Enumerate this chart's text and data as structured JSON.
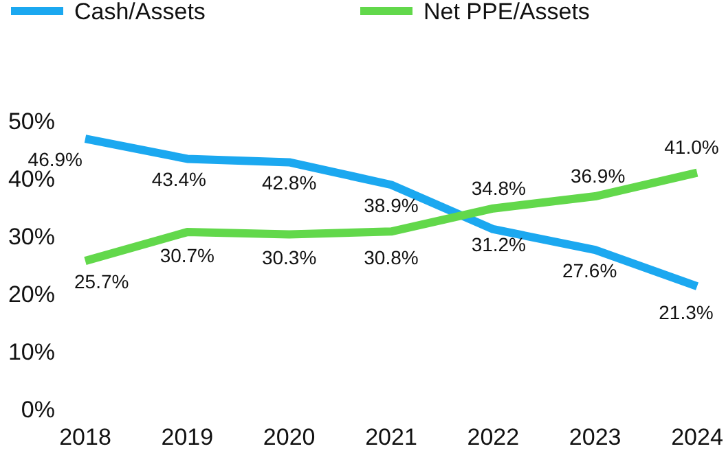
{
  "chart_data": {
    "type": "line",
    "categories": [
      "2018",
      "2019",
      "2020",
      "2021",
      "2022",
      "2023",
      "2024"
    ],
    "series": [
      {
        "name": "Cash/Assets",
        "color": "#1ba8f0",
        "values": [
          46.9,
          43.4,
          42.8,
          38.9,
          31.2,
          27.6,
          21.3
        ],
        "value_labels": [
          "46.9%",
          "43.4%",
          "42.8%",
          "38.9%",
          "31.2%",
          "27.6%",
          "21.3%"
        ]
      },
      {
        "name": "Net PPE/Assets",
        "color": "#62d84b",
        "values": [
          25.7,
          30.7,
          30.3,
          30.8,
          34.8,
          36.9,
          41.0
        ],
        "value_labels": [
          "25.7%",
          "30.7%",
          "30.3%",
          "30.8%",
          "34.8%",
          "36.9%",
          "41.0%"
        ]
      }
    ],
    "ylim": [
      0,
      50
    ],
    "yticks": [
      {
        "value": 0,
        "label": "0%"
      },
      {
        "value": 10,
        "label": "10%"
      },
      {
        "value": 20,
        "label": "20%"
      },
      {
        "value": 30,
        "label": "30%"
      },
      {
        "value": 40,
        "label": "40%"
      },
      {
        "value": 50,
        "label": "50%"
      }
    ],
    "grid": false,
    "legend": "top",
    "marker": "none",
    "line_style": "solid"
  }
}
